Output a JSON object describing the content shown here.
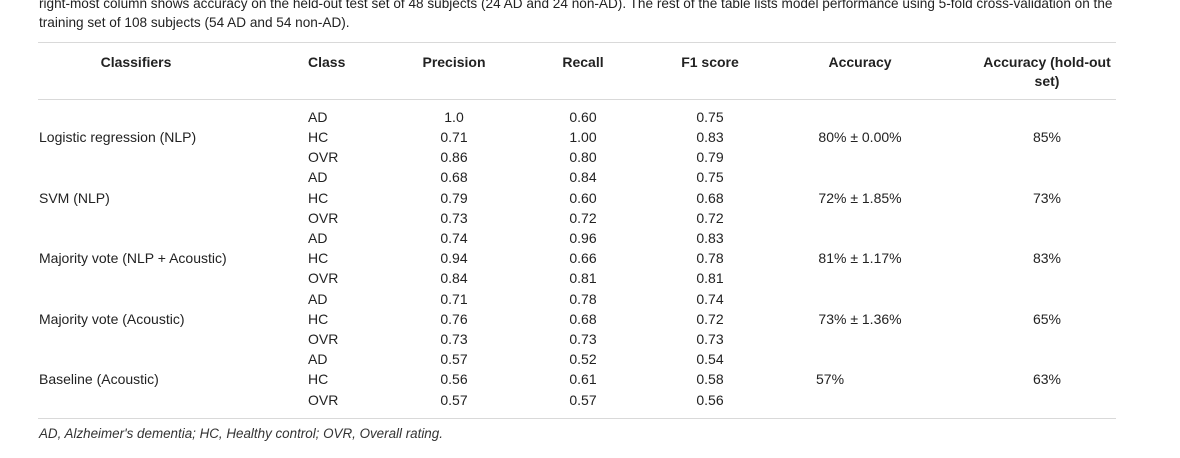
{
  "caption": "right-most column shows accuracy on the held-out test set of 48 subjects (24 AD and 24 non-AD). The rest of the table lists model performance using 5-fold cross-validation on the training set of 108 subjects (54 AD and 54 non-AD).",
  "headers": {
    "classifiers": "Classifiers",
    "class": "Class",
    "precision": "Precision",
    "recall": "Recall",
    "f1": "F1 score",
    "accuracy": "Accuracy",
    "accuracy_holdout": "Accuracy (hold-out set)"
  },
  "groups": [
    {
      "name": "Logistic regression (NLP)",
      "accuracy": "80% ± 0.00%",
      "holdout": "85%",
      "rows": [
        {
          "class": "AD",
          "precision": "1.0",
          "recall": "0.60",
          "f1": "0.75"
        },
        {
          "class": "HC",
          "precision": "0.71",
          "recall": "1.00",
          "f1": "0.83"
        },
        {
          "class": "OVR",
          "precision": "0.86",
          "recall": "0.80",
          "f1": "0.79"
        }
      ]
    },
    {
      "name": "SVM (NLP)",
      "accuracy": "72% ± 1.85%",
      "holdout": "73%",
      "rows": [
        {
          "class": "AD",
          "precision": "0.68",
          "recall": "0.84",
          "f1": "0.75"
        },
        {
          "class": "HC",
          "precision": "0.79",
          "recall": "0.60",
          "f1": "0.68"
        },
        {
          "class": "OVR",
          "precision": "0.73",
          "recall": "0.72",
          "f1": "0.72"
        }
      ]
    },
    {
      "name": "Majority vote (NLP + Acoustic)",
      "accuracy": "81% ± 1.17%",
      "holdout": "83%",
      "rows": [
        {
          "class": "AD",
          "precision": "0.74",
          "recall": "0.96",
          "f1": "0.83"
        },
        {
          "class": "HC",
          "precision": "0.94",
          "recall": "0.66",
          "f1": "0.78"
        },
        {
          "class": "OVR",
          "precision": "0.84",
          "recall": "0.81",
          "f1": "0.81"
        }
      ]
    },
    {
      "name": "Majority vote (Acoustic)",
      "accuracy": "73% ± 1.36%",
      "holdout": "65%",
      "rows": [
        {
          "class": "AD",
          "precision": "0.71",
          "recall": "0.78",
          "f1": "0.74"
        },
        {
          "class": "HC",
          "precision": "0.76",
          "recall": "0.68",
          "f1": "0.72"
        },
        {
          "class": "OVR",
          "precision": "0.73",
          "recall": "0.73",
          "f1": "0.73"
        }
      ]
    },
    {
      "name": "Baseline (Acoustic)",
      "accuracy": "57%",
      "holdout": "63%",
      "rows": [
        {
          "class": "AD",
          "precision": "0.57",
          "recall": "0.52",
          "f1": "0.54"
        },
        {
          "class": "HC",
          "precision": "0.56",
          "recall": "0.61",
          "f1": "0.58"
        },
        {
          "class": "OVR",
          "precision": "0.57",
          "recall": "0.57",
          "f1": "0.56"
        }
      ]
    }
  ],
  "footnote": "AD, Alzheimer's dementia; HC, Healthy control; OVR, Overall rating."
}
